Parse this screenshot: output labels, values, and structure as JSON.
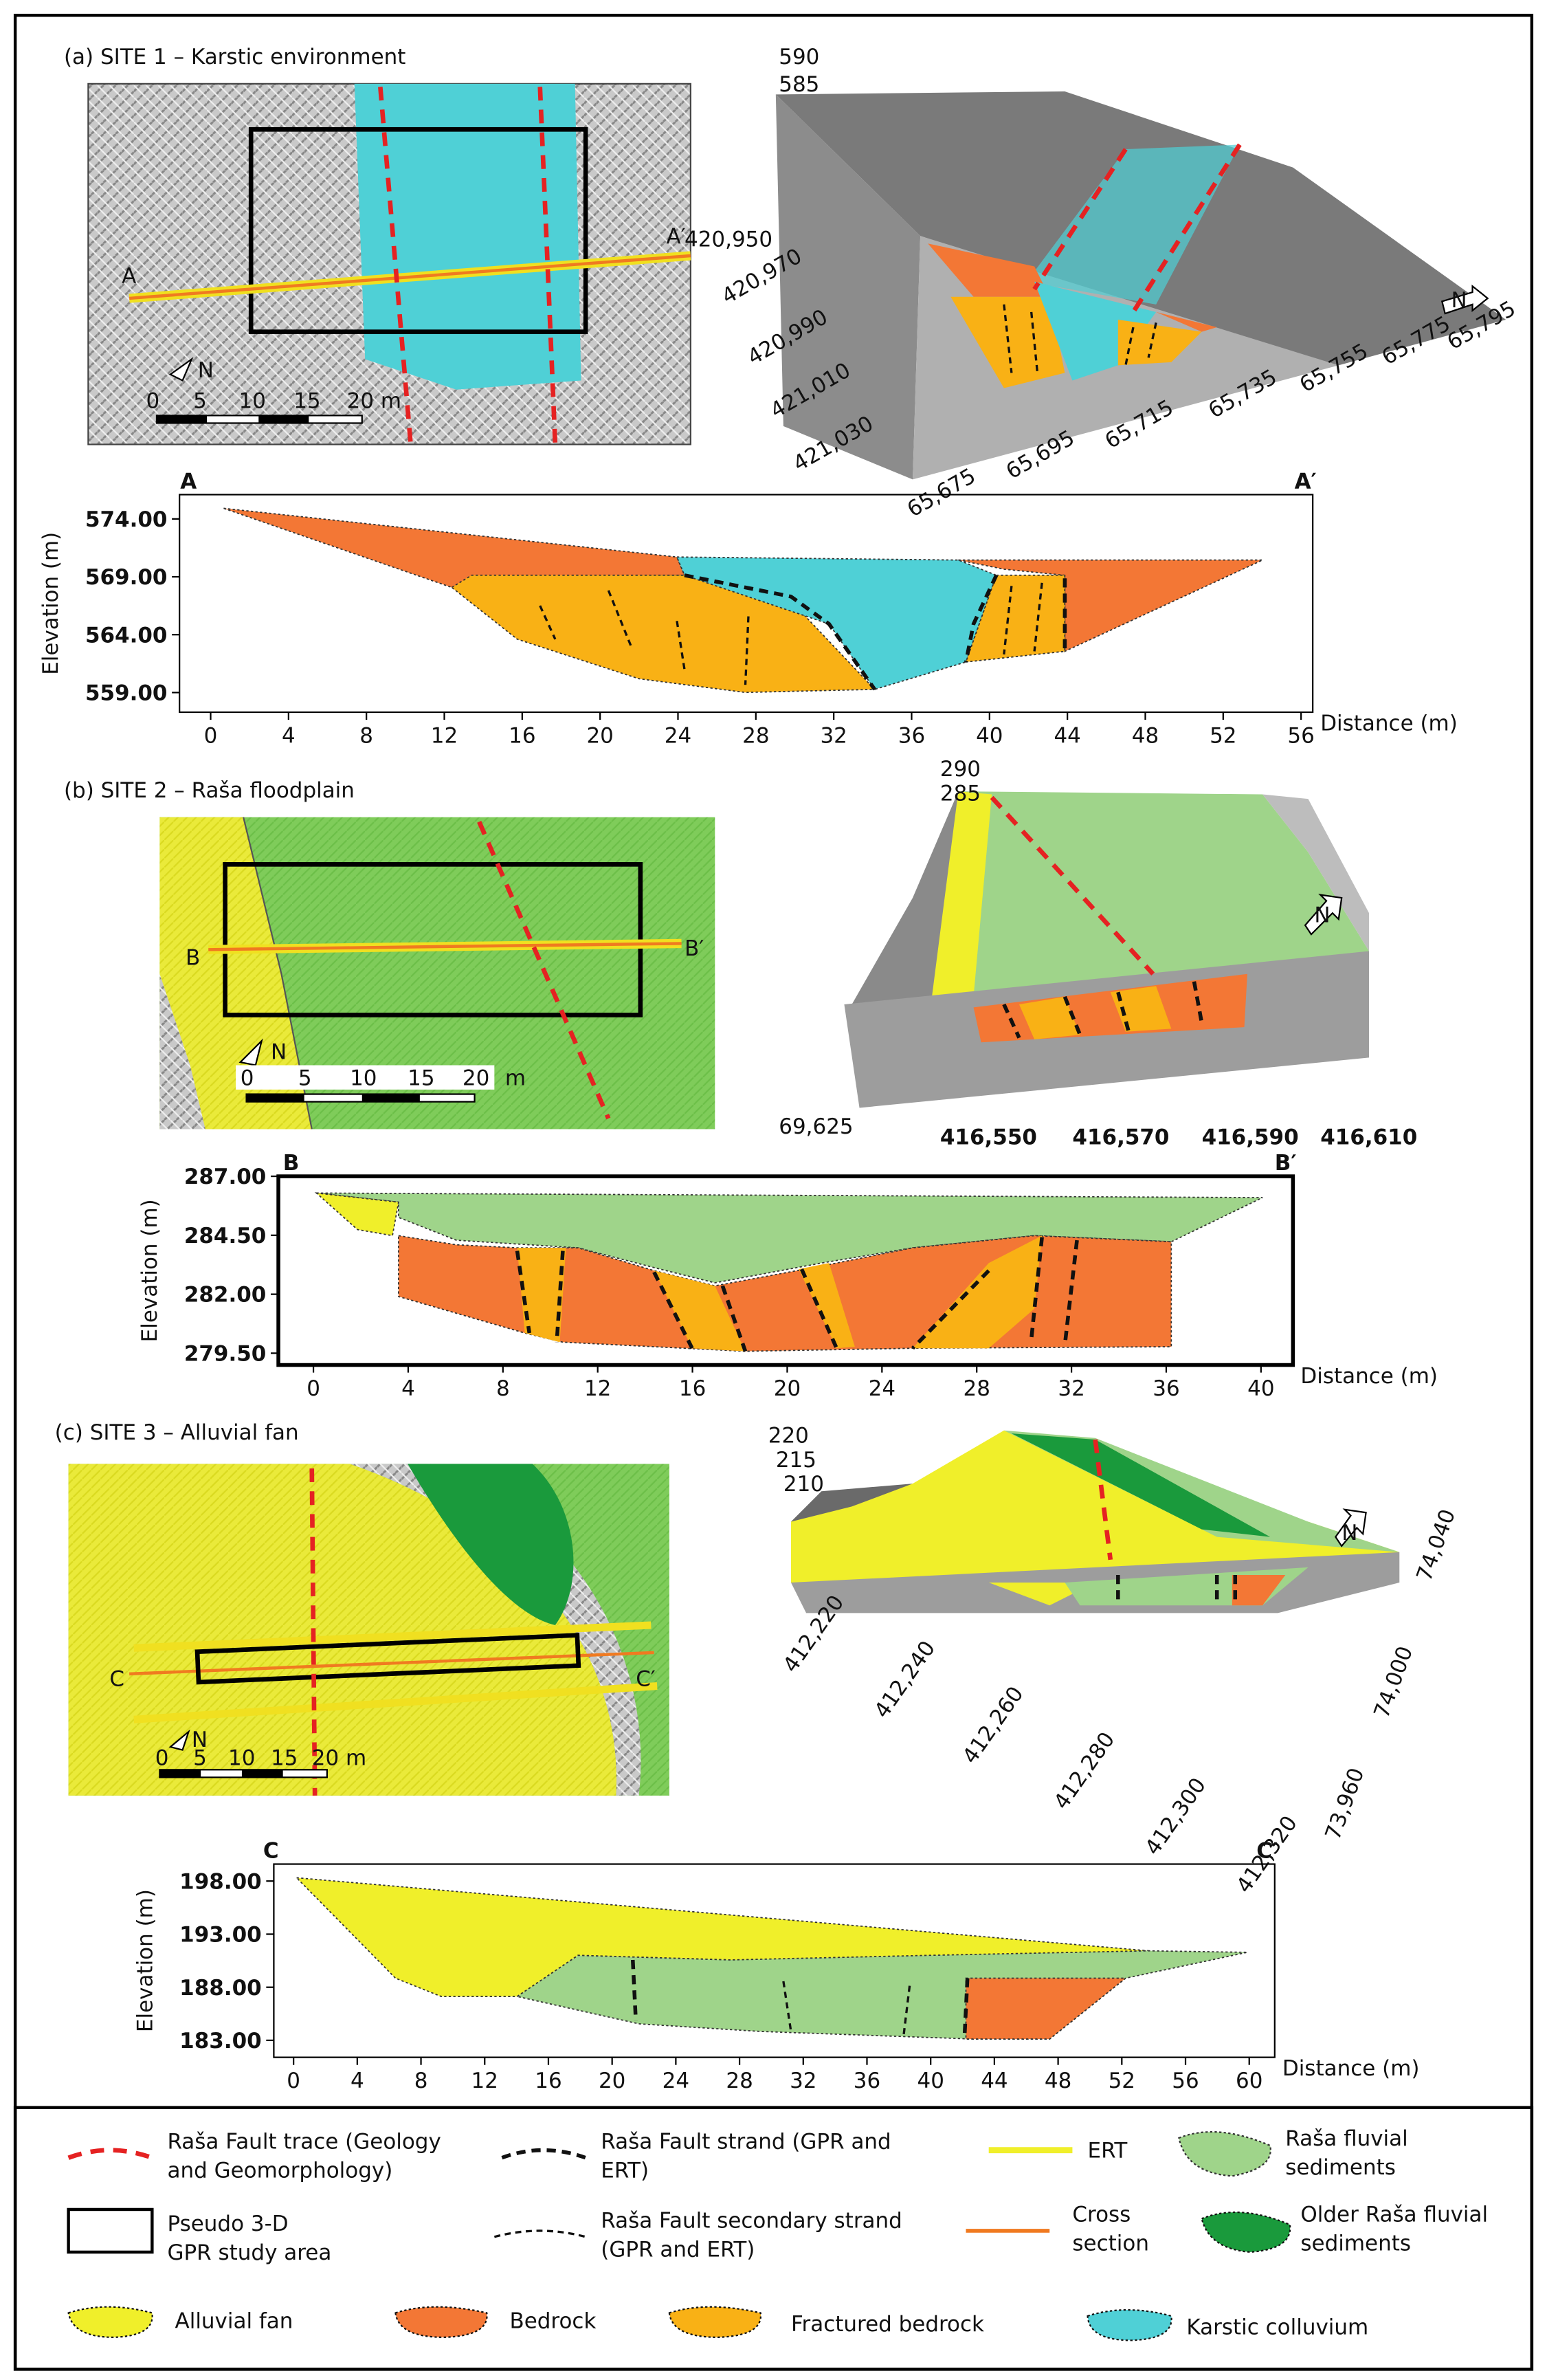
{
  "panels": [
    {
      "title": "(a) SITE 1 – Karstic environment",
      "map": {
        "start": "A",
        "end": "A′",
        "north": "N",
        "scale": [
          "0",
          "5",
          "10",
          "15",
          "20 m"
        ]
      },
      "block": {
        "z": [
          "590",
          "585"
        ],
        "y": [
          "420,950",
          "420,970",
          "420,990",
          "421,010",
          "421,030"
        ],
        "x": [
          "65,675",
          "65,695",
          "65,715",
          "65,735",
          "65,755",
          "65,775",
          "65,795"
        ],
        "north": "N"
      },
      "section": {
        "start": "A",
        "end": "A′",
        "ylabel": "Elevation (m)",
        "xlabel": "Distance (m)",
        "xlim": [
          -1.6,
          56.6
        ],
        "ylim": [
          557.3,
          576.1
        ],
        "xticks": [
          0,
          4,
          8,
          12,
          16,
          20,
          24,
          28,
          32,
          36,
          40,
          44,
          48,
          52,
          56
        ],
        "yticks": [
          {
            "value": 574,
            "label": "574.00"
          },
          {
            "value": 569,
            "label": "569.00"
          },
          {
            "value": 564,
            "label": "564.00"
          },
          {
            "value": 559,
            "label": "559.00"
          }
        ]
      }
    },
    {
      "title": "(b) SITE 2 – Raša floodplain",
      "map": {
        "start": "B",
        "end": "B′",
        "north": "N",
        "scale": [
          "0",
          "5",
          "10",
          "15",
          "20",
          "m"
        ]
      },
      "block": {
        "z": [
          "290",
          "285"
        ],
        "y": [
          "69,625"
        ],
        "x": [
          "416,550",
          "416,570",
          "416,590",
          "416,610"
        ],
        "north": "N"
      },
      "section": {
        "start": "B",
        "end": "B′",
        "ylabel": "Elevation (m)",
        "xlabel": "Distance (m)",
        "xlim": [
          -1.48,
          41.35
        ],
        "ylim": [
          279.0,
          287.0
        ],
        "xticks": [
          0,
          4,
          8,
          12,
          16,
          20,
          24,
          28,
          32,
          36,
          40
        ],
        "yticks": [
          {
            "value": 287,
            "label": "287.00"
          },
          {
            "value": 284.5,
            "label": "284.50"
          },
          {
            "value": 282,
            "label": "282.00"
          },
          {
            "value": 279.5,
            "label": "279.50"
          }
        ]
      }
    },
    {
      "title": "(c) SITE 3 – Alluvial fan",
      "map": {
        "start": "C",
        "end": "C′",
        "north": "N",
        "scale": [
          "0",
          "5",
          "10",
          "15",
          "20 m"
        ]
      },
      "block": {
        "z": [
          "220",
          "215",
          "210"
        ],
        "y": [
          "74,040",
          "74,000",
          "73,960"
        ],
        "x": [
          "412,220",
          "412,240",
          "412,260",
          "412,280",
          "412,300",
          "412,320"
        ],
        "north": "N"
      },
      "section": {
        "start": "C",
        "end": "C′",
        "ylabel": "Elevation (m)",
        "xlabel": "Distance (m)",
        "xlim": [
          -1.24,
          61.6
        ],
        "ylim": [
          181.4,
          199.6
        ],
        "xticks": [
          0,
          4,
          8,
          12,
          16,
          20,
          24,
          28,
          32,
          36,
          40,
          44,
          48,
          52,
          56,
          60
        ],
        "yticks": [
          {
            "value": 198,
            "label": "198.00"
          },
          {
            "value": 193,
            "label": "193.00"
          },
          {
            "value": 188,
            "label": "188.00"
          },
          {
            "value": 183,
            "label": "183.00"
          }
        ]
      }
    }
  ],
  "legend": [
    {
      "label": [
        "Raša Fault trace  (Geology",
        "and Geomorphology)"
      ]
    },
    {
      "label": [
        "Raša Fault strand  (GPR and",
        "ERT)"
      ]
    },
    {
      "label": [
        "ERT"
      ]
    },
    {
      "label": [
        "Raša fluvial",
        "sediments"
      ]
    },
    {
      "label": [
        "Pseudo 3-D",
        "GPR study area"
      ]
    },
    {
      "label": [
        "Raša Fault secondary strand",
        "(GPR and ERT)"
      ]
    },
    {
      "label": [
        "Cross",
        "section"
      ]
    },
    {
      "label": [
        "Older Raša fluvial",
        "sediments"
      ]
    },
    {
      "label": [
        "Alluvial fan"
      ]
    },
    {
      "label": [
        "Bedrock"
      ]
    },
    {
      "label": [
        "Fractured bedrock"
      ]
    },
    {
      "label": [
        "Karstic colluvium"
      ]
    }
  ]
}
